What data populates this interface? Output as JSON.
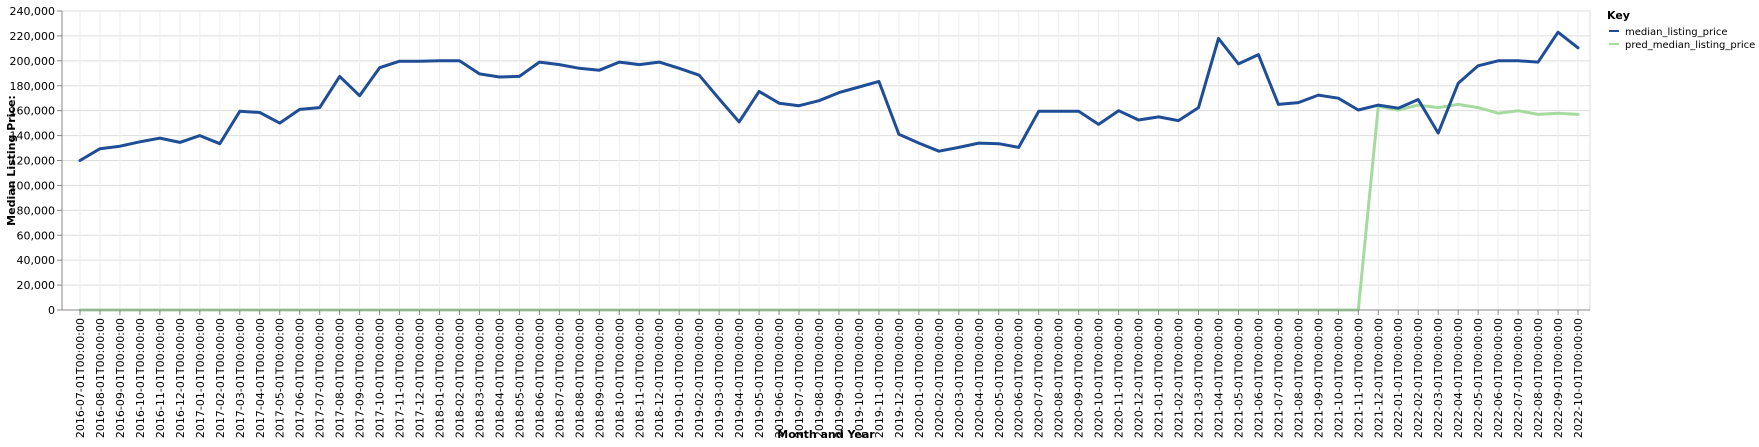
{
  "chart_data": {
    "type": "line",
    "xlabel": "Month and Year",
    "ylabel": "Median Listing Price:",
    "ylim": [
      0,
      240000
    ],
    "y_ticks": [
      "0",
      "20,000",
      "40,000",
      "60,000",
      "80,000",
      "100,000",
      "120,000",
      "140,000",
      "160,000",
      "180,000",
      "200,000",
      "220,000",
      "240,000"
    ],
    "grid": true,
    "legend": {
      "title": "Key",
      "placement": "top-right"
    },
    "x": [
      "2016-07-01T00:00:00",
      "2016-08-01T00:00:00",
      "2016-09-01T00:00:00",
      "2016-10-01T00:00:00",
      "2016-11-01T00:00:00",
      "2016-12-01T00:00:00",
      "2017-01-01T00:00:00",
      "2017-02-01T00:00:00",
      "2017-03-01T00:00:00",
      "2017-04-01T00:00:00",
      "2017-05-01T00:00:00",
      "2017-06-01T00:00:00",
      "2017-07-01T00:00:00",
      "2017-08-01T00:00:00",
      "2017-09-01T00:00:00",
      "2017-10-01T00:00:00",
      "2017-11-01T00:00:00",
      "2017-12-01T00:00:00",
      "2018-01-01T00:00:00",
      "2018-02-01T00:00:00",
      "2018-03-01T00:00:00",
      "2018-04-01T00:00:00",
      "2018-05-01T00:00:00",
      "2018-06-01T00:00:00",
      "2018-07-01T00:00:00",
      "2018-08-01T00:00:00",
      "2018-09-01T00:00:00",
      "2018-10-01T00:00:00",
      "2018-11-01T00:00:00",
      "2018-12-01T00:00:00",
      "2019-01-01T00:00:00",
      "2019-02-01T00:00:00",
      "2019-03-01T00:00:00",
      "2019-04-01T00:00:00",
      "2019-05-01T00:00:00",
      "2019-06-01T00:00:00",
      "2019-07-01T00:00:00",
      "2019-08-01T00:00:00",
      "2019-09-01T00:00:00",
      "2019-10-01T00:00:00",
      "2019-11-01T00:00:00",
      "2019-12-01T00:00:00",
      "2020-01-01T00:00:00",
      "2020-02-01T00:00:00",
      "2020-03-01T00:00:00",
      "2020-04-01T00:00:00",
      "2020-05-01T00:00:00",
      "2020-06-01T00:00:00",
      "2020-07-01T00:00:00",
      "2020-08-01T00:00:00",
      "2020-09-01T00:00:00",
      "2020-10-01T00:00:00",
      "2020-11-01T00:00:00",
      "2020-12-01T00:00:00",
      "2021-01-01T00:00:00",
      "2021-02-01T00:00:00",
      "2021-03-01T00:00:00",
      "2021-04-01T00:00:00",
      "2021-05-01T00:00:00",
      "2021-06-01T00:00:00",
      "2021-07-01T00:00:00",
      "2021-08-01T00:00:00",
      "2021-09-01T00:00:00",
      "2021-10-01T00:00:00",
      "2021-11-01T00:00:00",
      "2021-12-01T00:00:00",
      "2022-01-01T00:00:00",
      "2022-02-01T00:00:00",
      "2022-03-01T00:00:00",
      "2022-04-01T00:00:00",
      "2022-05-01T00:00:00",
      "2022-06-01T00:00:00",
      "2022-07-01T00:00:00",
      "2022-08-01T00:00:00",
      "2022-09-01T00:00:00",
      "2022-10-01T00:00:00"
    ],
    "series": [
      {
        "name": "median_listing_price",
        "color": "#1f4e96",
        "values": [
          120000,
          129500,
          131500,
          135000,
          138000,
          134500,
          140000,
          133500,
          159500,
          158500,
          150000,
          161000,
          162500,
          187500,
          172000,
          194500,
          199700,
          199700,
          200000,
          200000,
          189500,
          187000,
          187500,
          199000,
          197000,
          194000,
          192500,
          199000,
          197000,
          199000,
          194000,
          188500,
          169500,
          151000,
          175500,
          166000,
          164000,
          168000,
          174500,
          179000,
          183500,
          141000,
          134000,
          127500,
          130500,
          134000,
          133500,
          130500,
          159500,
          159500,
          159500,
          149000,
          160000,
          152500,
          155000,
          152000,
          162500,
          218000,
          197500,
          205000,
          165000,
          166500,
          172500,
          170000,
          160500,
          164500,
          162000,
          169000,
          142000,
          182000,
          196000,
          200000,
          200000,
          199000,
          223000,
          210500
        ]
      },
      {
        "name": "pred_median_listing_price",
        "color": "#a6dba0",
        "values": [
          0,
          0,
          0,
          0,
          0,
          0,
          0,
          0,
          0,
          0,
          0,
          0,
          0,
          0,
          0,
          0,
          0,
          0,
          0,
          0,
          0,
          0,
          0,
          0,
          0,
          0,
          0,
          0,
          0,
          0,
          0,
          0,
          0,
          0,
          0,
          0,
          0,
          0,
          0,
          0,
          0,
          0,
          0,
          0,
          0,
          0,
          0,
          0,
          0,
          0,
          0,
          0,
          0,
          0,
          0,
          0,
          0,
          0,
          0,
          0,
          0,
          0,
          0,
          0,
          0,
          163500,
          160500,
          164500,
          162500,
          165000,
          162500,
          158000,
          160000,
          157000,
          158000,
          157000
        ]
      }
    ]
  }
}
